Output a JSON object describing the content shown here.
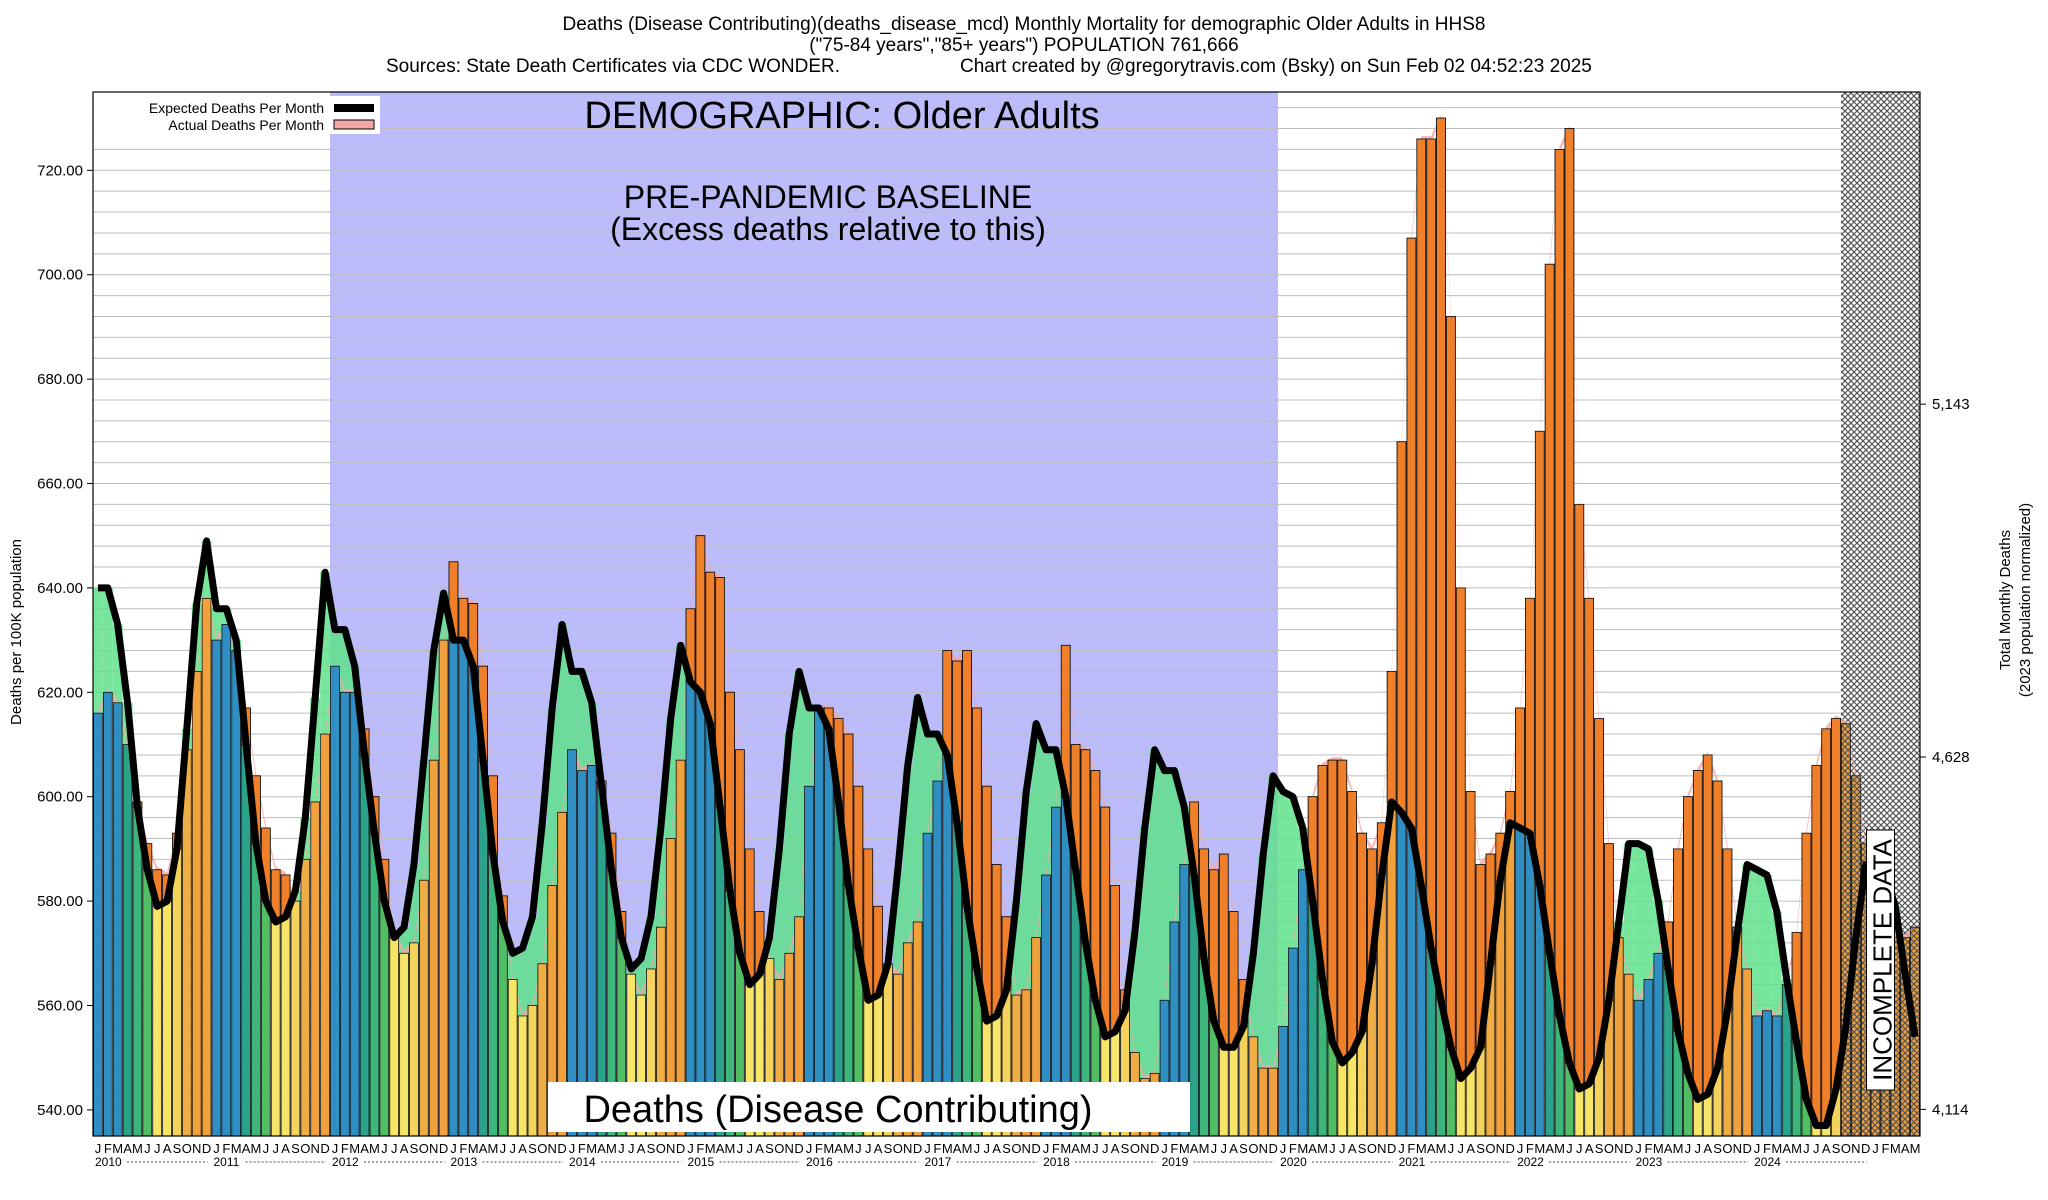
{
  "colors": {
    "baseline_fill": "#bcbcfb",
    "expected_line": "#000000",
    "actual_band": "#f4a7a5",
    "excess": "#f07f2a",
    "deficit_fill": "#5fe08a",
    "incomplete_hatch": "#808080",
    "grid": "#bdbdbd",
    "months": [
      "#2f8fc3",
      "#2f8fc3",
      "#2f8fc3",
      "#2ba38b",
      "#3cb67a",
      "#52be63",
      "#f7e567",
      "#f7e567",
      "#f3d35c",
      "#efae45",
      "#f0a13c",
      "#f0a13c"
    ]
  },
  "chart_data": {
    "type": "bar",
    "title_lines": [
      "Deaths (Disease Contributing)(deaths_disease_mcd) Monthly Mortality for demographic Older Adults in HHS8",
      "(\"75-84 years\",\"85+ years\") POPULATION 761,666"
    ],
    "sources_text": "Sources: State Death Certificates via CDC WONDER.",
    "credit_text": "Chart created by @gregorytravis.com (Bsky) on Sun Feb 02 04:52:23 2025",
    "ylabel": "Deaths per 100K population",
    "ylabel_right_lines": [
      "Total Monthly Deaths",
      "(2023 population normalized)"
    ],
    "ylim": [
      535,
      735
    ],
    "y_ticks": [
      "540.00",
      "560.00",
      "580.00",
      "600.00",
      "620.00",
      "640.00",
      "660.00",
      "680.00",
      "700.00",
      "720.00"
    ],
    "y_tick_values": [
      540,
      560,
      580,
      600,
      620,
      640,
      660,
      680,
      700,
      720
    ],
    "right_ticks": [
      "4,114",
      "4,628",
      "5,143"
    ],
    "right_tick_values": [
      540.1,
      607.6,
      675.2
    ],
    "grid": "horizontal",
    "start_year": 2010,
    "month_letters": [
      "J",
      "F",
      "M",
      "A",
      "M",
      "J",
      "J",
      "A",
      "S",
      "O",
      "N",
      "D"
    ],
    "year_labels": [
      "2010",
      "2011",
      "2012",
      "2013",
      "2014",
      "2015",
      "2016",
      "2017",
      "2018",
      "2019",
      "2020",
      "2021",
      "2022",
      "2023",
      "2024"
    ],
    "legend": {
      "placement": "top-left",
      "expected_label": "Expected Deaths Per Month",
      "actual_label": "Actual Deaths Per Month"
    },
    "annotations": {
      "demographic": "DEMOGRAPHIC: Older Adults",
      "baseline_line1": "PRE-PANDEMIC BASELINE",
      "baseline_line2": "(Excess deaths relative to this)",
      "bottom_title": "Deaths (Disease Contributing)",
      "incomplete": "INCOMPLETE DATA"
    },
    "baseline_period": {
      "start": "2012-01",
      "end": "2019-12"
    },
    "incomplete_period": {
      "start": "2024-10",
      "end": "2024-12"
    },
    "series": [
      {
        "name": "Actual Deaths Per Month",
        "values": [
          616,
          620,
          618,
          610,
          599,
          591,
          586,
          585,
          593,
          609,
          624,
          638,
          630,
          633,
          628,
          617,
          604,
          594,
          586,
          585,
          580,
          588,
          599,
          612,
          625,
          620,
          620,
          613,
          600,
          588,
          574,
          570,
          572,
          584,
          607,
          630,
          645,
          638,
          637,
          625,
          604,
          581,
          565,
          558,
          560,
          568,
          583,
          597,
          609,
          605,
          606,
          603,
          593,
          578,
          566,
          562,
          567,
          575,
          592,
          607,
          636,
          650,
          643,
          642,
          620,
          609,
          590,
          578,
          569,
          565,
          570,
          577,
          602,
          617,
          617,
          615,
          612,
          602,
          590,
          579,
          568,
          566,
          572,
          576,
          593,
          603,
          628,
          626,
          628,
          617,
          602,
          587,
          577,
          562,
          563,
          573,
          585,
          598,
          629,
          610,
          609,
          605,
          598,
          583,
          563,
          551,
          546,
          547,
          561,
          576,
          587,
          599,
          590,
          586,
          589,
          578,
          565,
          554,
          548,
          548,
          556,
          571,
          586,
          600,
          606,
          607,
          607,
          601,
          593,
          590,
          595,
          624,
          668,
          707,
          726,
          726,
          730,
          692,
          640,
          601,
          587,
          589,
          593,
          601,
          617,
          638,
          670,
          702,
          724,
          728,
          656,
          638,
          615,
          591,
          573,
          566,
          561,
          565,
          570,
          576,
          590,
          600,
          605,
          608,
          603,
          590,
          575,
          567,
          558,
          559,
          558,
          564,
          574,
          593,
          606,
          613,
          615,
          614,
          604,
          591,
          580,
          578,
          573,
          573,
          575
        ]
      },
      {
        "name": "Expected Deaths Per Month",
        "values": [
          640,
          640,
          633,
          618,
          598,
          586,
          579,
          580,
          590,
          613,
          637,
          649,
          636,
          636,
          630,
          610,
          591,
          580,
          576,
          577,
          582,
          596,
          619,
          643,
          632,
          632,
          625,
          608,
          593,
          580,
          573,
          575,
          587,
          607,
          628,
          639,
          630,
          630,
          625,
          607,
          589,
          576,
          570,
          571,
          577,
          595,
          617,
          633,
          624,
          624,
          618,
          602,
          586,
          573,
          567,
          569,
          577,
          594,
          615,
          629,
          622,
          620,
          614,
          598,
          582,
          570,
          564,
          566,
          573,
          590,
          612,
          624,
          617,
          617,
          613,
          599,
          583,
          571,
          561,
          562,
          568,
          586,
          606,
          619,
          612,
          612,
          608,
          595,
          579,
          567,
          557,
          558,
          563,
          580,
          601,
          614,
          609,
          609,
          600,
          586,
          572,
          561,
          554,
          555,
          559,
          574,
          594,
          609,
          605,
          605,
          598,
          585,
          569,
          557,
          552,
          552,
          556,
          570,
          589,
          604,
          601,
          600,
          594,
          580,
          565,
          553,
          549,
          551,
          555,
          568,
          585,
          599,
          597,
          594,
          583,
          571,
          561,
          552,
          546,
          548,
          552,
          568,
          584,
          595,
          594,
          593,
          583,
          570,
          558,
          549,
          544,
          545,
          550,
          561,
          576,
          591,
          591,
          590,
          580,
          567,
          555,
          547,
          542,
          543,
          548,
          559,
          574,
          587,
          586,
          585,
          578,
          565,
          553,
          542,
          537,
          537,
          544,
          556,
          573,
          587,
          587,
          585,
          579,
          566,
          554
        ]
      }
    ]
  }
}
